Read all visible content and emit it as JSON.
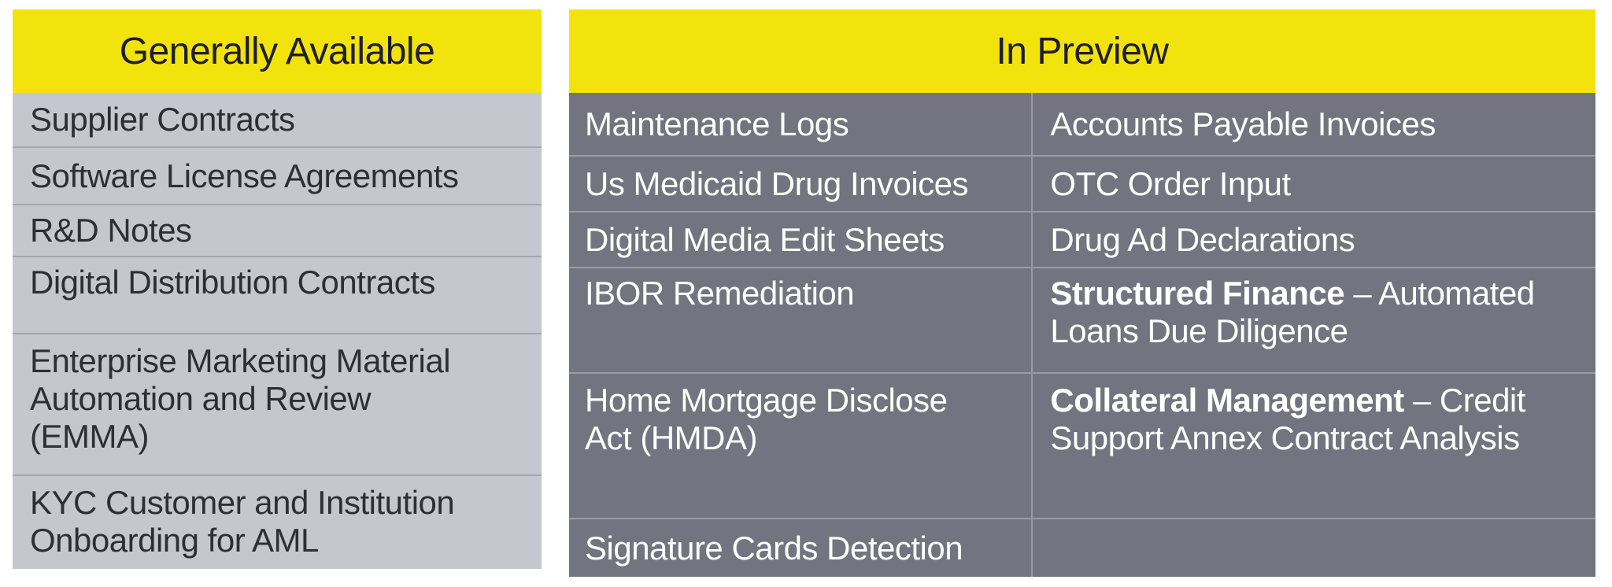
{
  "colors": {
    "header_bg": "#F2E30D",
    "header_text": "#1E1E28",
    "left_row_bg": "#C6C6CE",
    "left_text": "#2E2E38",
    "left_divider": "#A6A6B0",
    "right_row_bg": "#747480",
    "right_text": "#FFFFFF",
    "right_divider": "#9B9BA4"
  },
  "left_table": {
    "header": "Generally Available",
    "rows": [
      "Supplier Contracts",
      "Software License Agreements",
      "R&D Notes",
      "Digital Distribution Contracts",
      "Enterprise Marketing Material\nAutomation and Review\n(EMMA)",
      "KYC Customer and Institution\nOnboarding for AML"
    ]
  },
  "right_table": {
    "header": "In Preview",
    "rows": [
      {
        "left": "Maintenance Logs",
        "right_bold": "",
        "right_rest": "Accounts Payable Invoices"
      },
      {
        "left": "Us Medicaid Drug Invoices",
        "right_bold": "",
        "right_rest": "OTC Order Input"
      },
      {
        "left": "Digital Media Edit Sheets",
        "right_bold": "",
        "right_rest": "Drug Ad Declarations"
      },
      {
        "left": "IBOR Remediation",
        "right_bold": "Structured Finance",
        "right_rest": " – Automated\nLoans Due Diligence"
      },
      {
        "left": "Home Mortgage Disclose\nAct (HMDA)",
        "right_bold": "Collateral Management",
        "right_rest": " – Credit\nSupport Annex Contract Analysis"
      },
      {
        "left": "Signature Cards Detection",
        "right_bold": "",
        "right_rest": ""
      }
    ]
  },
  "chart_data": [
    {
      "type": "table",
      "title": "Generally Available",
      "columns": [
        ""
      ],
      "rows": [
        [
          "Supplier Contracts"
        ],
        [
          "Software License Agreements"
        ],
        [
          "R&D Notes"
        ],
        [
          "Digital Distribution Contracts"
        ],
        [
          "Enterprise Marketing Material Automation and Review (EMMA)"
        ],
        [
          "KYC Customer and Institution Onboarding for AML"
        ]
      ],
      "layout_hints": {
        "header_bg": "#F2E30D",
        "body_bg": "#C6C6CE",
        "text": "#2E2E38"
      }
    },
    {
      "type": "table",
      "title": "In Preview",
      "columns": [
        "",
        ""
      ],
      "rows": [
        [
          "Maintenance Logs",
          "Accounts Payable Invoices"
        ],
        [
          "Us Medicaid Drug Invoices",
          "OTC Order Input"
        ],
        [
          "Digital Media Edit Sheets",
          "Drug Ad Declarations"
        ],
        [
          "IBOR Remediation",
          "Structured Finance – Automated Loans Due Diligence"
        ],
        [
          "Home Mortgage Disclose Act (HMDA)",
          "Collateral Management – Credit Support Annex Contract Analysis"
        ],
        [
          "Signature Cards Detection",
          ""
        ]
      ],
      "layout_hints": {
        "header_bg": "#F2E30D",
        "body_bg": "#747480",
        "text": "#FFFFFF",
        "bold_prefixes": [
          "Structured Finance",
          "Collateral Management"
        ]
      }
    }
  ]
}
